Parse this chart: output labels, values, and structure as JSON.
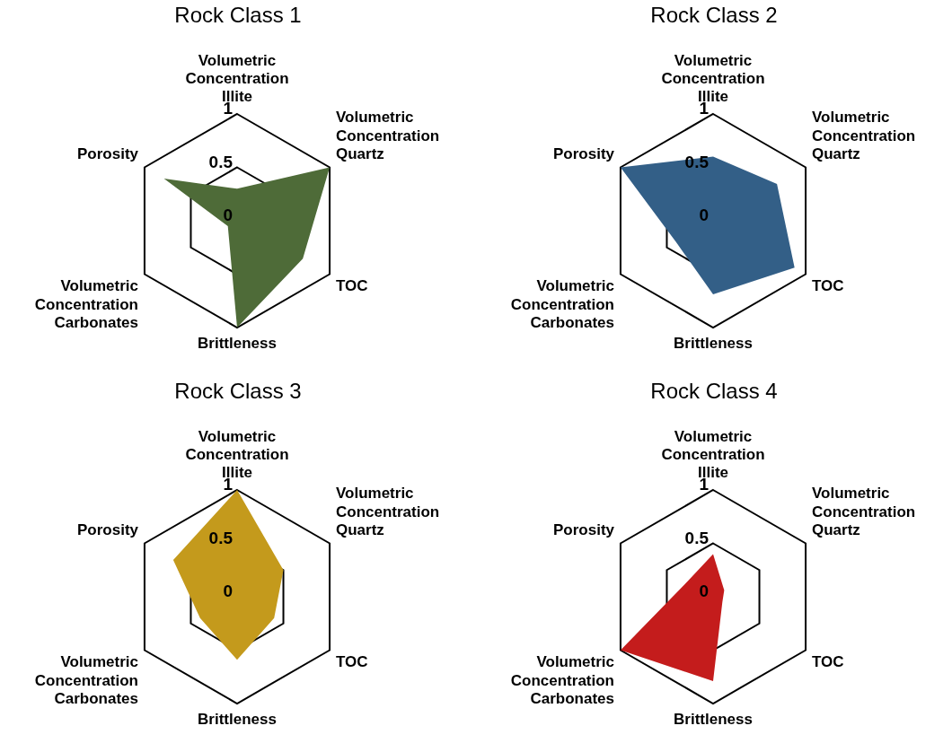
{
  "chart_data": [
    {
      "type": "radar",
      "title": "Rock Class 1",
      "categories": [
        "Volumetric Concentration Illite",
        "Volumetric Concentration Quartz",
        "TOC",
        "Brittleness",
        "Volumetric Concentration Carbonates",
        "Porosity"
      ],
      "ylim": [
        0,
        1
      ],
      "yticks": [
        0,
        0.5,
        1
      ],
      "series": [
        {
          "color": "#4e6b38",
          "values": [
            0.3,
            1,
            0.71,
            1,
            0.1,
            0.79
          ]
        }
      ]
    },
    {
      "type": "radar",
      "title": "Rock Class 2",
      "categories": [
        "Volumetric Concentration Illite",
        "Volumetric Concentration Quartz",
        "TOC",
        "Brittleness",
        "Volumetric Concentration Carbonates",
        "Porosity"
      ],
      "ylim": [
        0,
        1
      ],
      "yticks": [
        0,
        0.5,
        1
      ],
      "series": [
        {
          "color": "#335f87",
          "values": [
            0.6,
            0.69,
            0.88,
            0.69,
            0.4,
            1
          ]
        }
      ]
    },
    {
      "type": "radar",
      "title": "Rock Class 3",
      "categories": [
        "Volumetric Concentration Illite",
        "Volumetric Concentration Quartz",
        "TOC",
        "Brittleness",
        "Volumetric Concentration Carbonates",
        "Porosity"
      ],
      "ylim": [
        0,
        1
      ],
      "yticks": [
        0,
        0.5,
        1
      ],
      "series": [
        {
          "color": "#c49a1c",
          "values": [
            1,
            0.5,
            0.4,
            0.59,
            0.4,
            0.69
          ]
        }
      ]
    },
    {
      "type": "radar",
      "title": "Rock Class 4",
      "categories": [
        "Volumetric Concentration Illite",
        "Volumetric Concentration Quartz",
        "TOC",
        "Brittleness",
        "Volumetric Concentration Carbonates",
        "Porosity"
      ],
      "ylim": [
        0,
        1
      ],
      "yticks": [
        0,
        0.5,
        1
      ],
      "series": [
        {
          "color": "#c41c1c",
          "values": [
            0.4,
            0.12,
            0.1,
            0.79,
            1,
            0.28
          ]
        }
      ]
    }
  ]
}
